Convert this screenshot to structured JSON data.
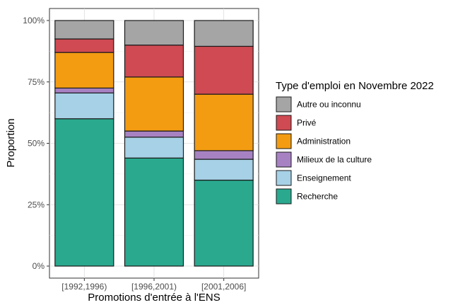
{
  "chart_data": {
    "type": "bar",
    "stacked": true,
    "xlabel": "Promotions d'entrée à l'ENS",
    "ylabel": "Proportion",
    "ylim": [
      0,
      1
    ],
    "yticks": [
      0,
      0.25,
      0.5,
      0.75,
      1.0
    ],
    "ytick_labels": [
      "0%",
      "25%",
      "50%",
      "75%",
      "100%"
    ],
    "categories": [
      "[1992,1996)",
      "[1996,2001)",
      "[2001,2006]"
    ],
    "legend_title": "Type d'emploi en Novembre 2022",
    "legend_position": "right",
    "grid": true,
    "series": [
      {
        "name": "Recherche",
        "color": "#2aa98f",
        "values": [
          0.6,
          0.44,
          0.35
        ]
      },
      {
        "name": "Enseignement",
        "color": "#a6d1e6",
        "values": [
          0.105,
          0.085,
          0.085
        ]
      },
      {
        "name": "Milieux de la culture",
        "color": "#a782c3",
        "values": [
          0.02,
          0.025,
          0.035
        ]
      },
      {
        "name": "Administration",
        "color": "#f39c12",
        "values": [
          0.145,
          0.22,
          0.23
        ]
      },
      {
        "name": "Privé",
        "color": "#cf4a52",
        "values": [
          0.055,
          0.13,
          0.195
        ]
      },
      {
        "name": "Autre ou inconnu",
        "color": "#a5a5a5",
        "values": [
          0.075,
          0.1,
          0.105
        ]
      }
    ]
  }
}
